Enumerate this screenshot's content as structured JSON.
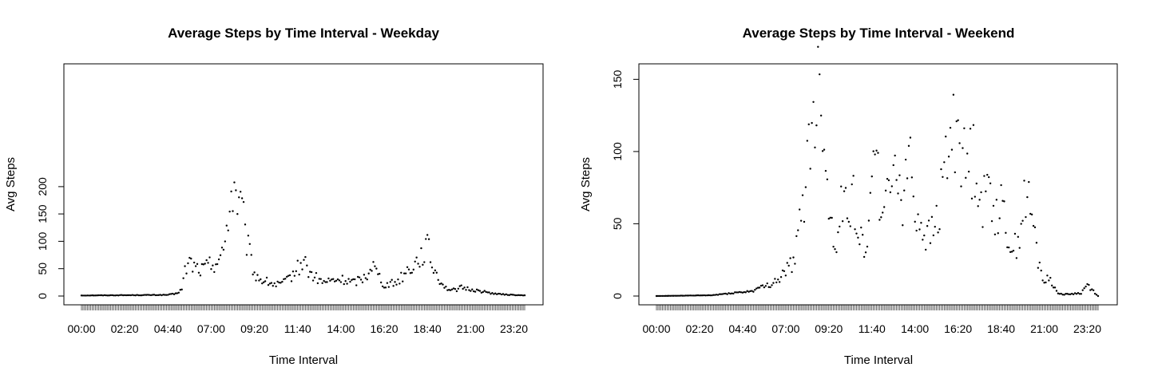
{
  "chart_data": [
    {
      "type": "scatter",
      "title": "Average Steps by Time Interval - Weekday",
      "xlabel": "Time Interval",
      "ylabel": "Avg Steps",
      "x_unit": "5-minute interval (00:00 to 23:55)",
      "xlim": [
        "00:00",
        "23:55"
      ],
      "ylim": [
        0,
        210
      ],
      "x_tick_labels": [
        "00:00",
        "02:20",
        "04:40",
        "07:00",
        "09:20",
        "11:40",
        "14:00",
        "16:20",
        "18:40",
        "21:00",
        "23:20"
      ],
      "y_ticks": [
        0,
        50,
        100,
        150,
        200
      ],
      "grid": false,
      "legend": "none",
      "point_color": "#000000",
      "anchors": [
        [
          "00:00",
          1
        ],
        [
          "04:35",
          2
        ],
        [
          "05:05",
          4
        ],
        [
          "05:25",
          12
        ],
        [
          "05:35",
          45
        ],
        [
          "05:50",
          62
        ],
        [
          "06:10",
          52
        ],
        [
          "06:30",
          48
        ],
        [
          "06:50",
          55
        ],
        [
          "07:10",
          62
        ],
        [
          "07:30",
          70
        ],
        [
          "07:40",
          75
        ],
        [
          "07:50",
          130
        ],
        [
          "08:00",
          175
        ],
        [
          "08:15",
          200
        ],
        [
          "08:30",
          165
        ],
        [
          "08:40",
          155
        ],
        [
          "08:50",
          110
        ],
        [
          "09:00",
          85
        ],
        [
          "09:10",
          65
        ],
        [
          "09:20",
          40
        ],
        [
          "09:40",
          30
        ],
        [
          "10:30",
          20
        ],
        [
          "11:00",
          25
        ],
        [
          "11:40",
          50
        ],
        [
          "12:00",
          65
        ],
        [
          "12:20",
          40
        ],
        [
          "13:00",
          25
        ],
        [
          "14:00",
          30
        ],
        [
          "14:40",
          25
        ],
        [
          "15:20",
          35
        ],
        [
          "15:40",
          60
        ],
        [
          "16:00",
          40
        ],
        [
          "16:20",
          20
        ],
        [
          "17:00",
          25
        ],
        [
          "17:40",
          50
        ],
        [
          "18:00",
          60
        ],
        [
          "18:20",
          75
        ],
        [
          "18:40",
          90
        ],
        [
          "19:00",
          50
        ],
        [
          "19:20",
          30
        ],
        [
          "19:40",
          15
        ],
        [
          "20:00",
          10
        ],
        [
          "20:30",
          15
        ],
        [
          "21:00",
          12
        ],
        [
          "21:40",
          8
        ],
        [
          "22:10",
          5
        ],
        [
          "22:40",
          3
        ],
        [
          "23:55",
          1
        ]
      ]
    },
    {
      "type": "scatter",
      "title": "Average Steps by Time Interval - Weekend",
      "xlabel": "Time Interval",
      "ylabel": "Avg Steps",
      "x_unit": "5-minute interval (00:00 to 23:55)",
      "xlim": [
        "00:00",
        "23:55"
      ],
      "ylim": [
        0,
        160
      ],
      "x_tick_labels": [
        "00:00",
        "02:20",
        "04:40",
        "07:00",
        "09:20",
        "11:40",
        "14:00",
        "16:20",
        "18:40",
        "21:00",
        "23:20"
      ],
      "y_ticks": [
        0,
        50,
        100,
        150
      ],
      "grid": false,
      "legend": "none",
      "point_color": "#000000",
      "anchors": [
        [
          "00:00",
          0
        ],
        [
          "03:00",
          0.5
        ],
        [
          "04:00",
          2
        ],
        [
          "05:00",
          3
        ],
        [
          "06:00",
          7
        ],
        [
          "06:40",
          12
        ],
        [
          "07:20",
          22
        ],
        [
          "07:40",
          40
        ],
        [
          "08:00",
          70
        ],
        [
          "08:20",
          110
        ],
        [
          "08:40",
          140
        ],
        [
          "09:00",
          135
        ],
        [
          "09:20",
          60
        ],
        [
          "09:40",
          35
        ],
        [
          "10:00",
          60
        ],
        [
          "10:40",
          70
        ],
        [
          "11:00",
          40
        ],
        [
          "11:20",
          30
        ],
        [
          "11:40",
          100
        ],
        [
          "12:00",
          80
        ],
        [
          "12:20",
          50
        ],
        [
          "12:40",
          85
        ],
        [
          "13:00",
          90
        ],
        [
          "13:20",
          70
        ],
        [
          "13:40",
          100
        ],
        [
          "14:00",
          60
        ],
        [
          "14:20",
          50
        ],
        [
          "14:40",
          40
        ],
        [
          "15:00",
          45
        ],
        [
          "15:20",
          60
        ],
        [
          "15:40",
          95
        ],
        [
          "16:00",
          110
        ],
        [
          "16:20",
          125
        ],
        [
          "16:40",
          90
        ],
        [
          "17:00",
          95
        ],
        [
          "17:20",
          95
        ],
        [
          "17:40",
          60
        ],
        [
          "18:00",
          80
        ],
        [
          "18:20",
          60
        ],
        [
          "18:40",
          60
        ],
        [
          "19:00",
          45
        ],
        [
          "19:20",
          30
        ],
        [
          "19:40",
          45
        ],
        [
          "20:00",
          70
        ],
        [
          "20:20",
          55
        ],
        [
          "20:40",
          25
        ],
        [
          "21:00",
          10
        ],
        [
          "21:20",
          12
        ],
        [
          "21:40",
          3
        ],
        [
          "22:00",
          1
        ],
        [
          "23:00",
          2
        ],
        [
          "23:20",
          8
        ],
        [
          "23:55",
          0
        ]
      ]
    }
  ]
}
